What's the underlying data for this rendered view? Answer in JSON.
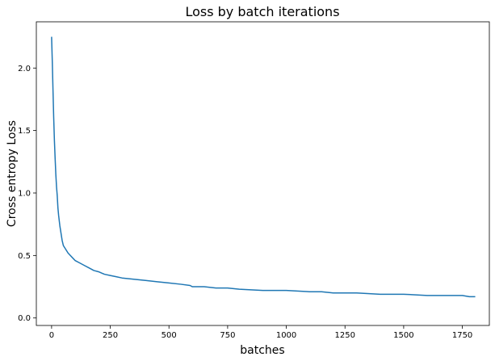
{
  "chart_data": {
    "type": "line",
    "title": "Loss by batch iterations",
    "xlabel": "batches",
    "ylabel": "Cross entropy Loss",
    "xlim": [
      -65,
      1865
    ],
    "ylim": [
      -0.06,
      2.37
    ],
    "xticks": [
      0,
      250,
      500,
      750,
      1000,
      1250,
      1500,
      1750
    ],
    "yticks": [
      0.0,
      0.5,
      1.0,
      1.5,
      2.0
    ],
    "xtick_labels": [
      "0",
      "250",
      "500",
      "750",
      "1000",
      "1250",
      "1500",
      "1750"
    ],
    "ytick_labels": [
      "0.0",
      "0.5",
      "1.0",
      "1.5",
      "2.0"
    ],
    "grid": false,
    "series": [
      {
        "color": "#1f77b4",
        "x": [
          0,
          3,
          6,
          9,
          12,
          15,
          18,
          21,
          24,
          27,
          30,
          35,
          40,
          45,
          50,
          60,
          70,
          80,
          90,
          100,
          120,
          140,
          160,
          180,
          200,
          225,
          250,
          275,
          300,
          350,
          400,
          450,
          500,
          550,
          590,
          600,
          650,
          700,
          750,
          800,
          900,
          1000,
          1100,
          1150,
          1200,
          1250,
          1300,
          1400,
          1500,
          1600,
          1700,
          1750,
          1780,
          1800,
          1805
        ],
        "y": [
          2.25,
          2.05,
          1.82,
          1.6,
          1.42,
          1.28,
          1.15,
          1.05,
          0.98,
          0.88,
          0.82,
          0.74,
          0.68,
          0.62,
          0.58,
          0.55,
          0.52,
          0.5,
          0.48,
          0.46,
          0.44,
          0.42,
          0.4,
          0.38,
          0.37,
          0.35,
          0.34,
          0.33,
          0.32,
          0.31,
          0.3,
          0.29,
          0.28,
          0.27,
          0.26,
          0.25,
          0.25,
          0.24,
          0.24,
          0.23,
          0.22,
          0.22,
          0.21,
          0.21,
          0.2,
          0.2,
          0.2,
          0.19,
          0.19,
          0.18,
          0.18,
          0.18,
          0.17,
          0.17,
          0.17
        ]
      }
    ]
  }
}
